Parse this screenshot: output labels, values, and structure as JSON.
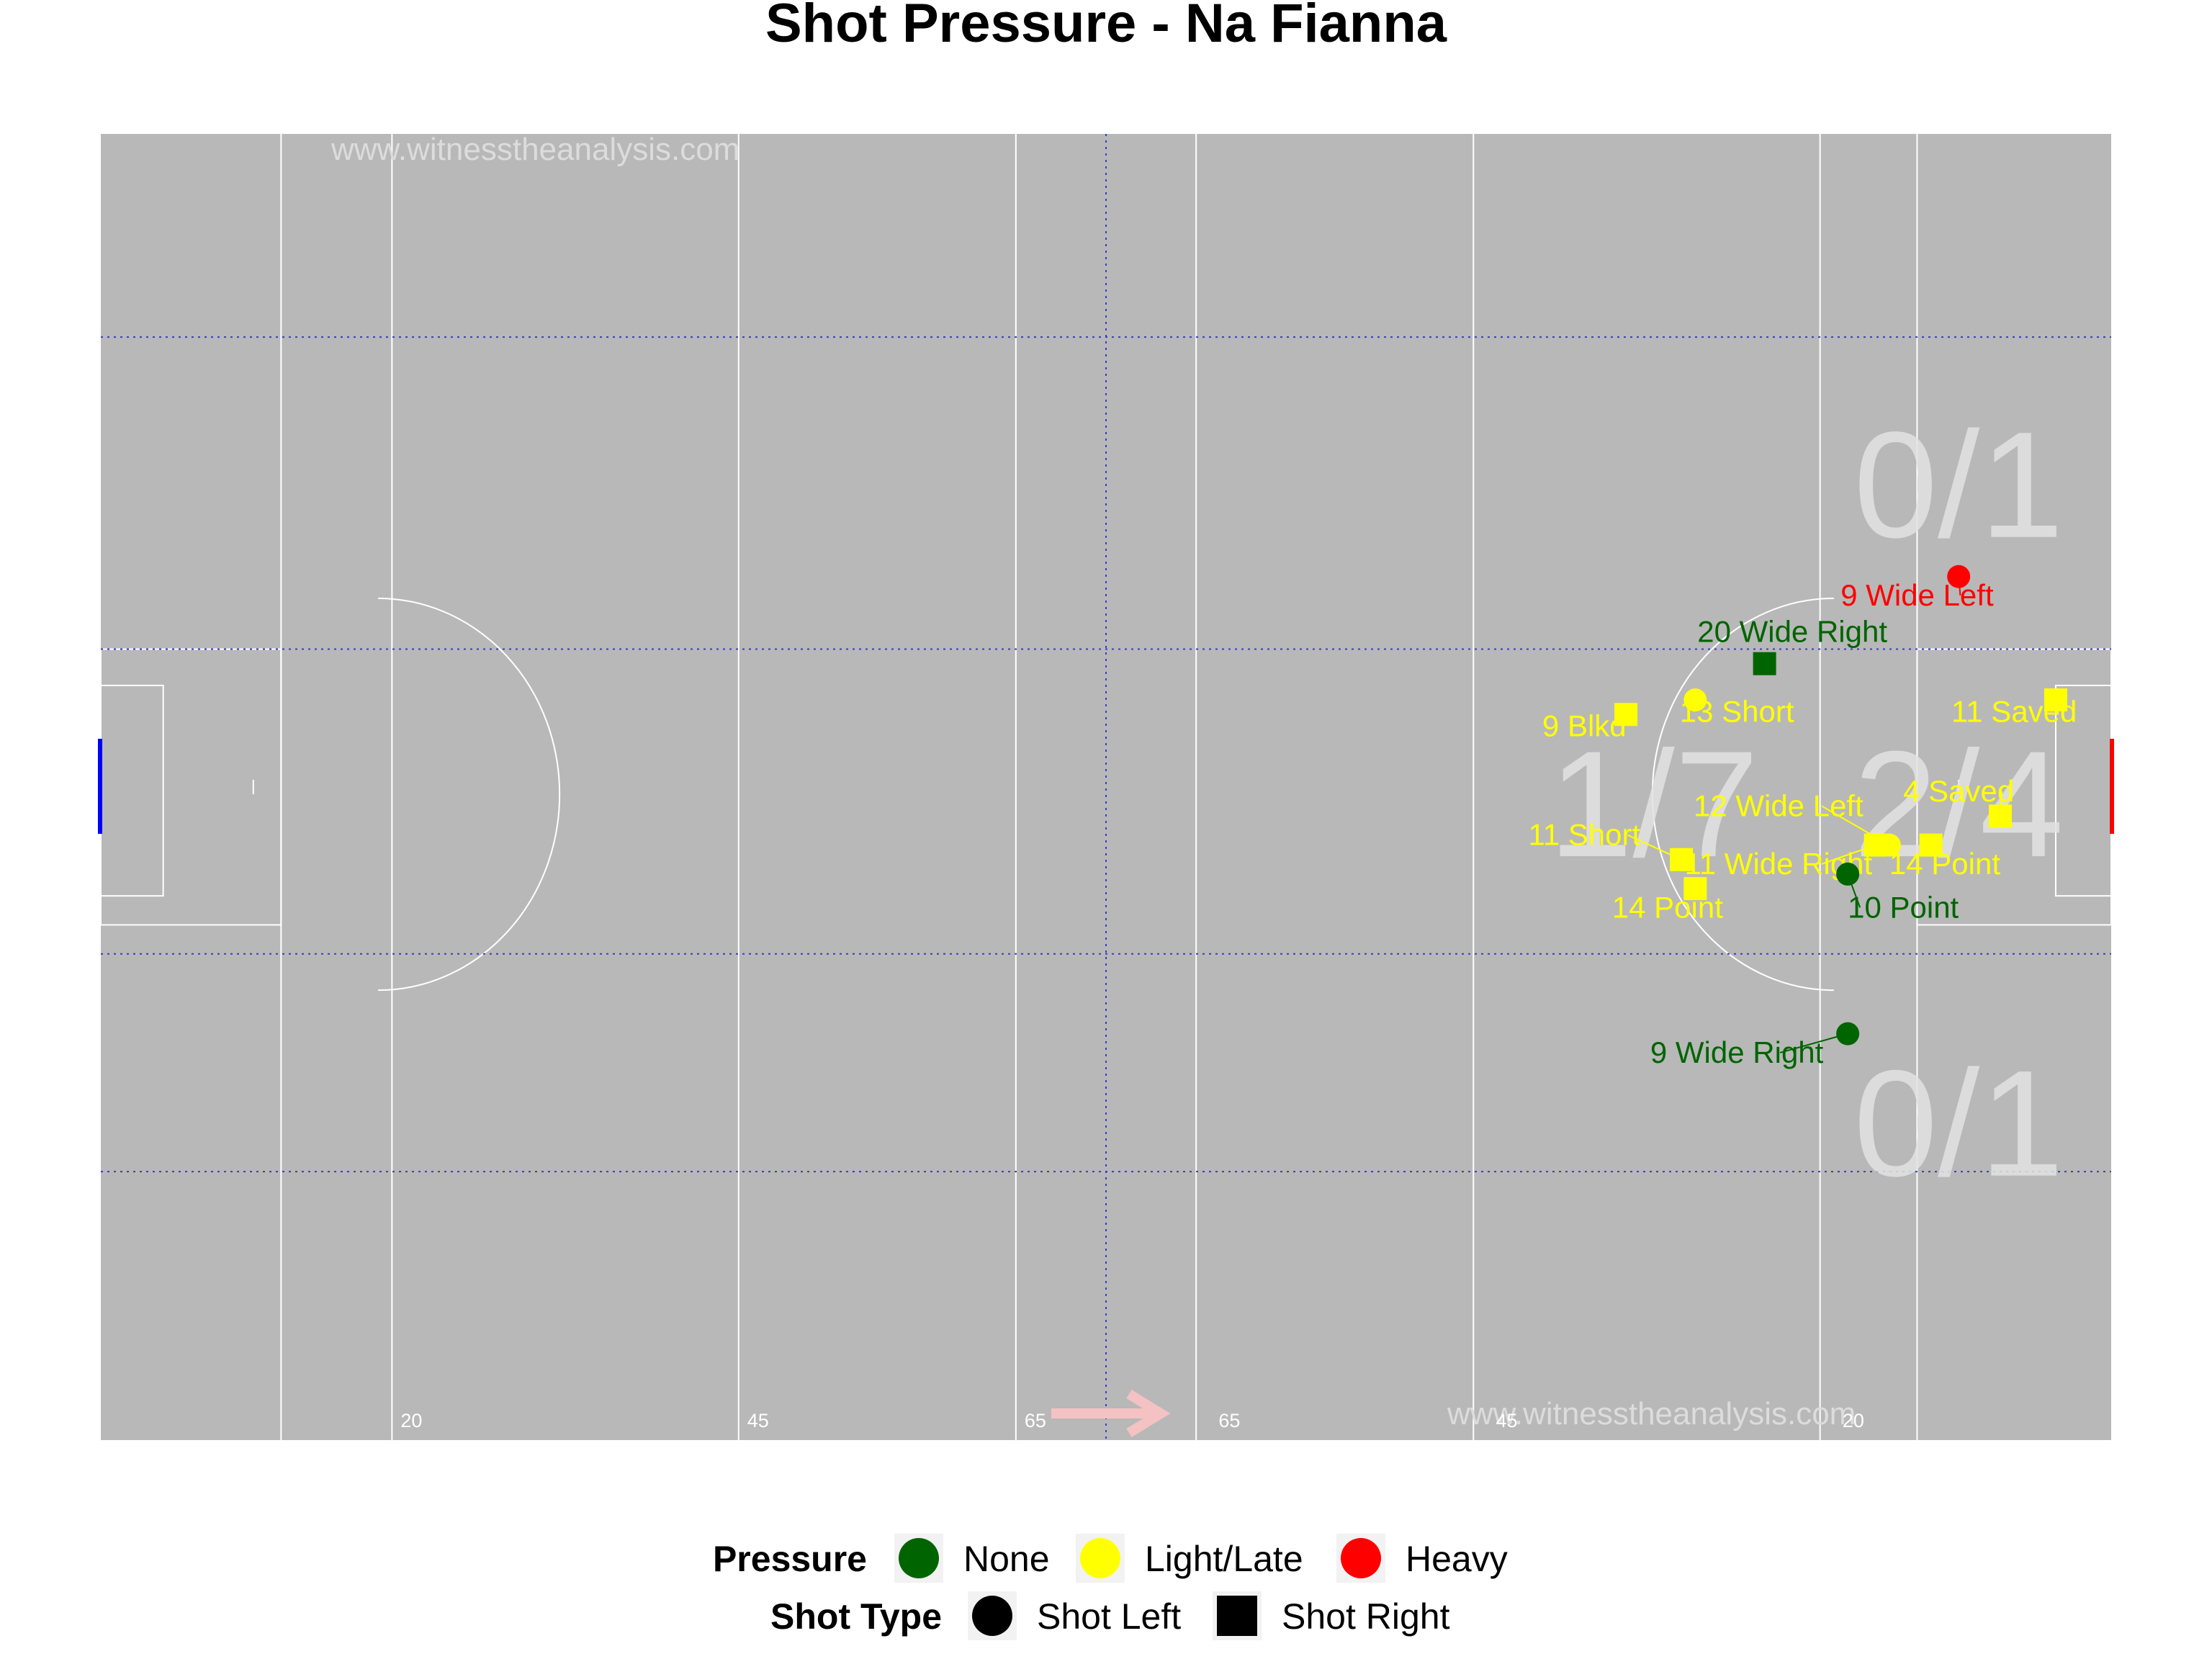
{
  "chart_data": {
    "type": "scatter",
    "title": "Shot Pressure - Na Fianna",
    "watermark": "www.witnesstheanalysis.com",
    "xlim": [
      0,
      145
    ],
    "ylim": [
      0,
      90
    ],
    "distance_markers": [
      {
        "x": 21,
        "label": "20"
      },
      {
        "x": 46,
        "label": "45"
      },
      {
        "x": 66,
        "label": "65"
      },
      {
        "x": 80,
        "label": "65"
      },
      {
        "x": 100,
        "label": "45"
      },
      {
        "x": 125,
        "label": "20"
      }
    ],
    "zone_labels": [
      {
        "x": 134,
        "y": 66,
        "text": "0/1"
      },
      {
        "x": 112,
        "y": 44,
        "text": "1/7"
      },
      {
        "x": 134,
        "y": 44,
        "text": "2/4"
      },
      {
        "x": 134,
        "y": 22,
        "text": "0/1"
      }
    ],
    "pressure_colors": {
      "None": "#006400",
      "Light/Late": "#ffff00",
      "Heavy": "#ff0000"
    },
    "shots": [
      {
        "x": 134.0,
        "y": 59.5,
        "pressure": "Heavy",
        "type": "Shot Left",
        "label": "9 Wide Left",
        "lx": 131,
        "ly": 57.5
      },
      {
        "x": 120.0,
        "y": 53.5,
        "pressure": "None",
        "type": "Shot Right",
        "label": "20 Wide Right",
        "lx": 122,
        "ly": 55.0
      },
      {
        "x": 115.0,
        "y": 51.0,
        "pressure": "Light/Late",
        "type": "Shot Left",
        "label": "13 Short",
        "lx": 118,
        "ly": 49.5
      },
      {
        "x": 110.0,
        "y": 50.0,
        "pressure": "Light/Late",
        "type": "Shot Right",
        "label": "9 Blkd",
        "lx": 107,
        "ly": 48.5
      },
      {
        "x": 141.0,
        "y": 51.0,
        "pressure": "Light/Late",
        "type": "Shot Right",
        "label": "11 Saved",
        "lx": 138,
        "ly": 49.5
      },
      {
        "x": 137.0,
        "y": 43.0,
        "pressure": "Light/Late",
        "type": "Shot Right",
        "label": "4 Saved",
        "lx": 134,
        "ly": 44.0
      },
      {
        "x": 129.0,
        "y": 41.0,
        "pressure": "Light/Late",
        "type": "Shot Left",
        "label": "12 Wide Left",
        "lx": 121,
        "ly": 43.0
      },
      {
        "x": 128.0,
        "y": 41.0,
        "pressure": "Light/Late",
        "type": "Shot Right",
        "label": "11 Wide Right",
        "lx": 121,
        "ly": 39.0
      },
      {
        "x": 132.0,
        "y": 41.0,
        "pressure": "Light/Late",
        "type": "Shot Right",
        "label": "14 Point",
        "lx": 133,
        "ly": 39.0
      },
      {
        "x": 126.0,
        "y": 39.0,
        "pressure": "None",
        "type": "Shot Left",
        "label": "10 Point",
        "lx": 130,
        "ly": 36.0
      },
      {
        "x": 114.0,
        "y": 40.0,
        "pressure": "Light/Late",
        "type": "Shot Right",
        "label": "11 Short",
        "lx": 107,
        "ly": 41.0
      },
      {
        "x": 115.0,
        "y": 38.0,
        "pressure": "Light/Late",
        "type": "Shot Right",
        "label": "14 Point",
        "lx": 113,
        "ly": 36.0
      },
      {
        "x": 126.0,
        "y": 28.0,
        "pressure": "None",
        "type": "Shot Left",
        "label": "9 Wide Right",
        "lx": 118,
        "ly": 26.0
      }
    ],
    "legend": {
      "pressure_title": "Pressure",
      "pressure_items": [
        {
          "label": "None",
          "color": "#006400"
        },
        {
          "label": "Light/Late",
          "color": "#ffff00"
        },
        {
          "label": "Heavy",
          "color": "#ff0000"
        }
      ],
      "type_title": "Shot Type",
      "type_items": [
        {
          "label": "Shot Left",
          "shape": "circle"
        },
        {
          "label": "Shot Right",
          "shape": "square"
        }
      ]
    }
  }
}
